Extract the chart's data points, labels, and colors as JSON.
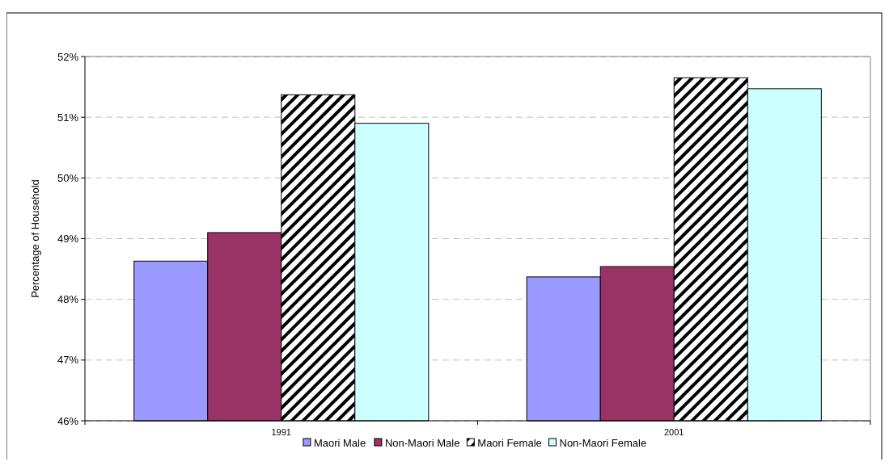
{
  "chart_data": {
    "type": "bar",
    "ylabel": "Percentage of Household",
    "categories": [
      "1991",
      "2001"
    ],
    "series": [
      {
        "name": "Maori Male",
        "color": "#9999ff",
        "values": [
          48.63,
          48.37
        ]
      },
      {
        "name": "Non-Maori Male",
        "color": "#993366",
        "values": [
          49.1,
          48.54
        ]
      },
      {
        "name": "Maori Female",
        "color": "#000000",
        "values": [
          51.37,
          51.65
        ]
      },
      {
        "name": "Non-Maori Female",
        "color": "#ccffff",
        "values": [
          50.9,
          51.47
        ]
      }
    ],
    "ylim": [
      46,
      52
    ],
    "yticks": [
      {
        "value": 46,
        "label": "46%"
      },
      {
        "value": 47,
        "label": "47%"
      },
      {
        "value": 48,
        "label": "48%"
      },
      {
        "value": 49,
        "label": "49%"
      },
      {
        "value": 50,
        "label": "50%"
      },
      {
        "value": 51,
        "label": "51%"
      },
      {
        "value": 52,
        "label": "52%"
      }
    ],
    "grid": "y",
    "legend": "bottom"
  }
}
